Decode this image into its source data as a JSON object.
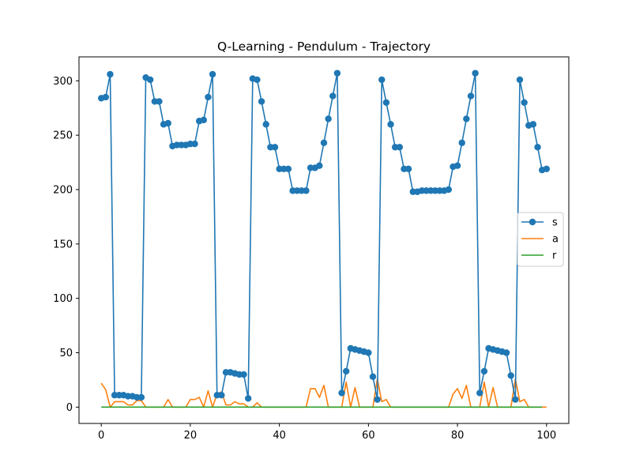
{
  "chart_data": {
    "type": "line",
    "title": "Q-Learning - Pendulum - Trajectory",
    "xlabel": "",
    "ylabel": "",
    "xlim": [
      -5,
      105
    ],
    "ylim": [
      -15,
      322
    ],
    "x_ticks": [
      0,
      20,
      40,
      60,
      80,
      100
    ],
    "y_ticks": [
      0,
      50,
      100,
      150,
      200,
      250,
      300
    ],
    "grid": false,
    "legend_position": "center-right",
    "series": [
      {
        "name": "s",
        "color": "#1f77b4",
        "marker": "circle",
        "values": [
          284,
          285,
          306,
          11,
          11,
          11,
          10,
          10,
          9,
          9,
          303,
          301,
          281,
          281,
          260,
          261,
          240,
          241,
          241,
          241,
          242,
          242,
          263,
          264,
          285,
          306,
          11,
          11,
          32,
          32,
          31,
          30,
          30,
          8,
          302,
          301,
          281,
          260,
          239,
          239,
          219,
          219,
          219,
          199,
          199,
          199,
          199,
          220,
          220,
          222,
          243,
          265,
          286,
          307,
          13,
          33,
          54,
          53,
          52,
          51,
          50,
          28,
          7,
          301,
          280,
          260,
          239,
          239,
          219,
          219,
          198,
          198,
          199,
          199,
          199,
          199,
          199,
          199,
          200,
          221,
          222,
          243,
          265,
          286,
          307,
          13,
          33,
          54,
          53,
          52,
          51,
          50,
          29,
          7,
          301,
          280,
          259,
          260,
          239,
          218,
          219
        ]
      },
      {
        "name": "a",
        "color": "#ff7f0e",
        "marker": "none",
        "values": [
          22,
          16,
          0,
          5,
          5,
          5,
          2,
          2,
          6,
          6,
          0,
          0,
          0,
          0,
          0,
          7,
          0,
          0,
          0,
          0,
          7,
          7,
          9,
          0,
          15,
          0,
          12,
          14,
          2,
          2,
          5,
          3,
          3,
          0,
          0,
          4,
          0,
          0,
          0,
          0,
          0,
          0,
          0,
          0,
          0,
          0,
          0,
          17,
          17,
          9,
          20,
          0,
          0,
          0,
          0,
          23,
          0,
          18,
          0,
          0,
          0,
          0,
          26,
          5,
          7,
          0,
          0,
          0,
          0,
          0,
          0,
          0,
          0,
          0,
          0,
          0,
          0,
          0,
          0,
          12,
          17,
          8,
          20,
          0,
          0,
          0,
          23,
          0,
          18,
          0,
          0,
          0,
          0,
          26,
          5,
          7,
          0,
          0,
          0,
          0,
          0
        ]
      },
      {
        "name": "r",
        "color": "#2ca02c",
        "marker": "none",
        "values": [
          0,
          0,
          0,
          0,
          0,
          0,
          0,
          0,
          0,
          0,
          0,
          0,
          0,
          0,
          0,
          0,
          0,
          0,
          0,
          0,
          0,
          0,
          0,
          0,
          0,
          0,
          0,
          0,
          0,
          0,
          0,
          0,
          0,
          0,
          0,
          0,
          0,
          0,
          0,
          0,
          0,
          0,
          0,
          0,
          0,
          0,
          0,
          0,
          0,
          0,
          0,
          0,
          0,
          0,
          0,
          0,
          0,
          0,
          0,
          0,
          0,
          0,
          0,
          0,
          0,
          0,
          0,
          0,
          0,
          0,
          0,
          0,
          0,
          0,
          0,
          0,
          0,
          0,
          0,
          0,
          0,
          0,
          0,
          0,
          0,
          0,
          0,
          0,
          0,
          0,
          0,
          0,
          0,
          0,
          0,
          0,
          0,
          0,
          0,
          0
        ]
      }
    ]
  }
}
